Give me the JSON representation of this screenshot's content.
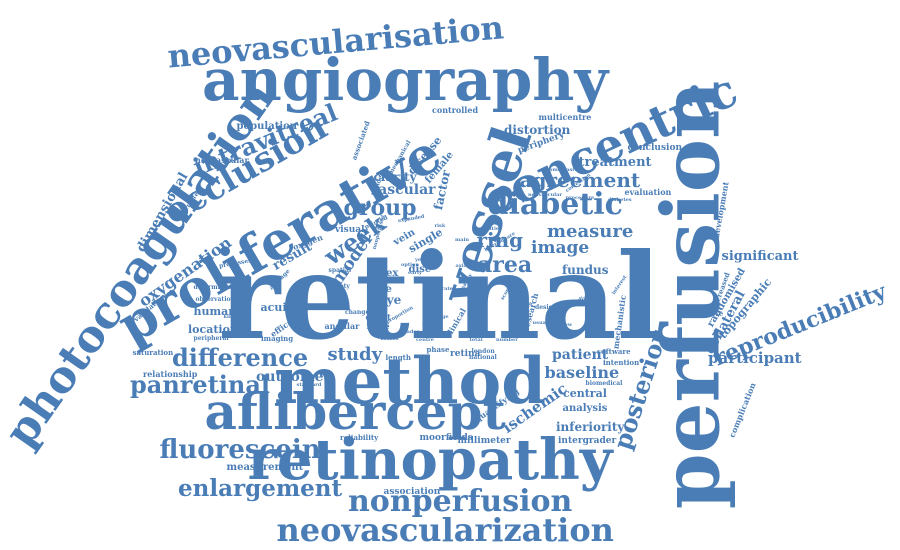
{
  "color": "#4a7db6",
  "words": [
    {
      "text": "retinal",
      "weight": 100
    },
    {
      "text": "perfusion",
      "weight": 72
    },
    {
      "text": "method",
      "weight": 58
    },
    {
      "text": "retinopathy",
      "weight": 55
    },
    {
      "text": "aflibercept",
      "weight": 55
    },
    {
      "text": "proliferative",
      "weight": 54
    },
    {
      "text": "photocoagulation",
      "weight": 52
    },
    {
      "text": "angiography",
      "weight": 50
    },
    {
      "text": "vessel",
      "weight": 48
    },
    {
      "text": "concentric",
      "weight": 42
    },
    {
      "text": "neovascularization",
      "weight": 40
    },
    {
      "text": "nonperfusion",
      "weight": 38
    },
    {
      "text": "neovascularisation",
      "weight": 35
    },
    {
      "text": "occlusion",
      "weight": 34
    },
    {
      "text": "diabetic",
      "weight": 32
    },
    {
      "text": "fluorescein",
      "weight": 30
    },
    {
      "text": "difference",
      "weight": 30
    },
    {
      "text": "panretinal",
      "weight": 28
    },
    {
      "text": "intravitreal",
      "weight": 27
    },
    {
      "text": "enlargement",
      "weight": 26
    },
    {
      "text": "posterior",
      "weight": 26
    },
    {
      "text": "reproducibility",
      "weight": 25
    },
    {
      "text": "week",
      "weight": 25
    },
    {
      "text": "area",
      "weight": 25
    },
    {
      "text": "group",
      "weight": 22
    },
    {
      "text": "agreement",
      "weight": 22
    },
    {
      "text": "ring",
      "weight": 20
    },
    {
      "text": "measure",
      "weight": 20
    },
    {
      "text": "study",
      "weight": 20
    },
    {
      "text": "baseline",
      "weight": 20
    },
    {
      "text": "oxygenation",
      "weight": 19
    },
    {
      "text": "model",
      "weight": 19
    },
    {
      "text": "image",
      "weight": 18
    },
    {
      "text": "participant",
      "weight": 18
    },
    {
      "text": "ischemic",
      "weight": 18
    },
    {
      "text": "treatment",
      "weight": 16
    },
    {
      "text": "significant",
      "weight": 16
    },
    {
      "text": "collateral",
      "weight": 16
    },
    {
      "text": "patient",
      "weight": 16
    },
    {
      "text": "outcome",
      "weight": 16
    },
    {
      "text": "vascular",
      "weight": 16
    },
    {
      "text": "result",
      "weight": 15
    },
    {
      "text": "dimensional",
      "weight": 14
    },
    {
      "text": "distortion",
      "weight": 14
    },
    {
      "text": "inferiority",
      "weight": 13
    },
    {
      "text": "fundus",
      "weight": 13
    },
    {
      "text": "acuity",
      "weight": 14
    },
    {
      "text": "eye",
      "weight": 14
    },
    {
      "text": "factor",
      "weight": 13
    },
    {
      "text": "clarity",
      "weight": 13
    },
    {
      "text": "human",
      "weight": 13
    },
    {
      "text": "location",
      "weight": 13
    },
    {
      "text": "central",
      "weight": 12
    },
    {
      "text": "analysis",
      "weight": 12
    },
    {
      "text": "topographic",
      "weight": 12
    },
    {
      "text": "randomised",
      "weight": 11
    },
    {
      "text": "population",
      "weight": 11
    },
    {
      "text": "index",
      "weight": 12
    },
    {
      "text": "pole",
      "weight": 12
    },
    {
      "text": "disc",
      "weight": 11
    },
    {
      "text": "single",
      "weight": 12
    },
    {
      "text": "vein",
      "weight": 11
    },
    {
      "text": "disease",
      "weight": 11
    },
    {
      "text": "female",
      "weight": 10
    },
    {
      "text": "measurement",
      "weight": 11
    },
    {
      "text": "association",
      "weight": 10
    },
    {
      "text": "moorfields",
      "weight": 10
    },
    {
      "text": "millimeter",
      "weight": 10
    },
    {
      "text": "intergrader",
      "weight": 10
    },
    {
      "text": "relationship",
      "weight": 10
    },
    {
      "text": "conclusion",
      "weight": 10
    },
    {
      "text": "periphery",
      "weight": 10
    },
    {
      "text": "controlled",
      "weight": 9
    },
    {
      "text": "multicentre",
      "weight": 9
    },
    {
      "text": "evaluation",
      "weight": 9
    },
    {
      "text": "development",
      "weight": 9
    },
    {
      "text": "increased",
      "weight": 8
    },
    {
      "text": "complication",
      "weight": 9
    },
    {
      "text": "consecutive",
      "weight": 8
    },
    {
      "text": "mechanistic",
      "weight": 9
    },
    {
      "text": "research",
      "weight": 9
    },
    {
      "text": "quantifying",
      "weight": 9
    },
    {
      "text": "clinical",
      "weight": 9
    },
    {
      "text": "curve",
      "weight": 9
    },
    {
      "text": "effect",
      "weight": 9
    },
    {
      "text": "more",
      "weight": 9
    },
    {
      "text": "retina",
      "weight": 10
    },
    {
      "text": "software",
      "weight": 8
    },
    {
      "text": "intention",
      "weight": 8
    },
    {
      "text": "biomedical",
      "weight": 7
    },
    {
      "text": "london",
      "weight": 7
    },
    {
      "text": "national",
      "weight": 6
    },
    {
      "text": "phase",
      "weight": 8
    },
    {
      "text": "length",
      "weight": 8
    },
    {
      "text": "visual",
      "weight": 9
    },
    {
      "text": "angular",
      "weight": 9
    },
    {
      "text": "imaging",
      "weight": 8
    },
    {
      "text": "efficacy",
      "weight": 9
    },
    {
      "text": "observation",
      "weight": 7
    },
    {
      "text": "peripheral",
      "weight": 7
    },
    {
      "text": "saturation",
      "weight": 8
    },
    {
      "text": "validation",
      "weight": 8
    },
    {
      "text": "determined",
      "weight": 7
    },
    {
      "text": "processes",
      "weight": 6
    },
    {
      "text": "average",
      "weight": 7
    },
    {
      "text": "oxygen",
      "weight": 9
    },
    {
      "text": "corrected",
      "weight": 7
    },
    {
      "text": "neovascular",
      "weight": 9
    },
    {
      "text": "associated",
      "weight": 8
    },
    {
      "text": "blinded",
      "weight": 6
    },
    {
      "text": "mechanical",
      "weight": 6
    },
    {
      "text": "safety",
      "weight": 6
    },
    {
      "text": "spatial",
      "weight": 6
    },
    {
      "text": "change",
      "weight": 6
    },
    {
      "text": "printed",
      "weight": 6
    },
    {
      "text": "expanded",
      "weight": 5
    },
    {
      "text": "nonperfused",
      "weight": 5
    },
    {
      "text": "nonvascular",
      "weight": 5
    },
    {
      "text": "nominvasive",
      "weight": 6
    },
    {
      "text": "correction",
      "weight": 6
    },
    {
      "text": "procedure",
      "weight": 6
    },
    {
      "text": "modalities",
      "weight": 6
    },
    {
      "text": "laser square",
      "weight": 6
    },
    {
      "text": "axial",
      "weight": 6
    },
    {
      "text": "main",
      "weight": 6
    },
    {
      "text": "diabetes",
      "weight": 6
    },
    {
      "text": "interest",
      "weight": 6
    },
    {
      "text": "design",
      "weight": 7
    },
    {
      "text": "grading",
      "weight": 6
    },
    {
      "text": "optic",
      "weight": 7
    },
    {
      "text": "letter",
      "weight": 6
    },
    {
      "text": "centre",
      "weight": 6
    },
    {
      "text": "trial",
      "weight": 6
    },
    {
      "text": "kingdom",
      "weight": 6
    },
    {
      "text": "standard",
      "weight": 6
    },
    {
      "text": "reliability",
      "weight": 7
    },
    {
      "text": "year",
      "weight": 6
    },
    {
      "text": "option",
      "weight": 5
    },
    {
      "text": "early",
      "weight": 5
    },
    {
      "text": "healthy",
      "weight": 5
    },
    {
      "text": "male",
      "weight": 5
    },
    {
      "text": "cause",
      "weight": 5
    },
    {
      "text": "total",
      "weight": 5
    },
    {
      "text": "number",
      "weight": 5
    },
    {
      "text": "mean",
      "weight": 5
    },
    {
      "text": "usual",
      "weight": 5
    },
    {
      "text": "review",
      "weight": 5
    },
    {
      "text": "proportion",
      "weight": 5
    },
    {
      "text": "grader",
      "weight": 5
    },
    {
      "text": "field",
      "weight": 5
    },
    {
      "text": "score",
      "weight": 5
    },
    {
      "text": "pilot",
      "weight": 5
    },
    {
      "text": "clinic",
      "weight": 5
    },
    {
      "text": "risk",
      "weight": 5
    },
    {
      "text": "point",
      "weight": 5
    },
    {
      "text": "rate",
      "weight": 5
    },
    {
      "text": "stage",
      "weight": 5
    }
  ]
}
